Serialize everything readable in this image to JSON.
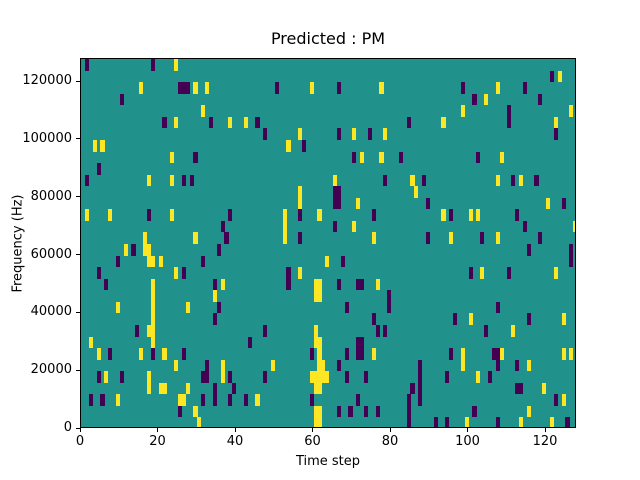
{
  "figure": {
    "title": "Predicted : PM",
    "xlabel": "Time step",
    "ylabel": "Frequency (Hz)"
  },
  "chart_data": {
    "type": "heatmap",
    "title": "Predicted : PM",
    "xlabel": "Time step",
    "ylabel": "Frequency (Hz)",
    "x_range": [
      0,
      128
    ],
    "y_range_hz": [
      0,
      128000
    ],
    "x_ticks": [
      0,
      20,
      40,
      60,
      80,
      100,
      120
    ],
    "y_ticks": [
      0,
      20000,
      40000,
      60000,
      80000,
      100000,
      120000
    ],
    "grid": false,
    "legend": "none",
    "n_cols": 128,
    "n_rows": 32,
    "row_height_hz": 4000,
    "colors": {
      "background_teal": "#21918c",
      "yellow": "#fde725",
      "purple": "#440154",
      "axes": "#000000"
    },
    "cells_format": "[time_step, freq_row(0=0-4kHz ... 31=124-128kHz), color y|p]",
    "cells": [
      [
        1,
        31,
        "p"
      ],
      [
        18,
        31,
        "p"
      ],
      [
        24,
        31,
        "y"
      ],
      [
        121,
        30,
        "p"
      ],
      [
        123,
        30,
        "y"
      ],
      [
        15,
        29,
        "y"
      ],
      [
        25,
        29,
        "p"
      ],
      [
        26,
        29,
        "p"
      ],
      [
        27,
        29,
        "p"
      ],
      [
        29,
        29,
        "y"
      ],
      [
        32,
        29,
        "y"
      ],
      [
        50,
        29,
        "p"
      ],
      [
        59,
        29,
        "y"
      ],
      [
        66,
        29,
        "p"
      ],
      [
        77,
        29,
        "y"
      ],
      [
        98,
        29,
        "p"
      ],
      [
        107,
        29,
        "y"
      ],
      [
        114,
        29,
        "p"
      ],
      [
        10,
        28,
        "p"
      ],
      [
        101,
        28,
        "p"
      ],
      [
        104,
        28,
        "y"
      ],
      [
        118,
        28,
        "p"
      ],
      [
        31,
        27,
        "y"
      ],
      [
        98,
        27,
        "y"
      ],
      [
        110,
        27,
        "p"
      ],
      [
        126,
        27,
        "y"
      ],
      [
        21,
        26,
        "p"
      ],
      [
        24,
        26,
        "y"
      ],
      [
        33,
        26,
        "p"
      ],
      [
        38,
        26,
        "y"
      ],
      [
        42,
        26,
        "y"
      ],
      [
        45,
        26,
        "p"
      ],
      [
        84,
        26,
        "p"
      ],
      [
        93,
        26,
        "y"
      ],
      [
        110,
        26,
        "p"
      ],
      [
        122,
        26,
        "y"
      ],
      [
        47,
        25,
        "p"
      ],
      [
        56,
        25,
        "y"
      ],
      [
        66,
        25,
        "p"
      ],
      [
        70,
        25,
        "y"
      ],
      [
        74,
        25,
        "p"
      ],
      [
        78,
        25,
        "y"
      ],
      [
        122,
        25,
        "p"
      ],
      [
        3,
        24,
        "y"
      ],
      [
        5,
        24,
        "y"
      ],
      [
        53,
        24,
        "y"
      ],
      [
        57,
        24,
        "p"
      ],
      [
        23,
        23,
        "y"
      ],
      [
        29,
        23,
        "p"
      ],
      [
        70,
        23,
        "p"
      ],
      [
        72,
        23,
        "y"
      ],
      [
        77,
        23,
        "y"
      ],
      [
        82,
        23,
        "p"
      ],
      [
        102,
        23,
        "p"
      ],
      [
        108,
        23,
        "y"
      ],
      [
        4,
        22,
        "p"
      ],
      [
        1,
        21,
        "p"
      ],
      [
        17,
        21,
        "y"
      ],
      [
        23,
        21,
        "y"
      ],
      [
        26,
        21,
        "p"
      ],
      [
        28,
        21,
        "p"
      ],
      [
        65,
        21,
        "y"
      ],
      [
        78,
        21,
        "p"
      ],
      [
        85,
        21,
        "y"
      ],
      [
        88,
        21,
        "p"
      ],
      [
        107,
        21,
        "y"
      ],
      [
        111,
        21,
        "p"
      ],
      [
        113,
        21,
        "y"
      ],
      [
        117,
        21,
        "p"
      ],
      [
        56,
        20,
        "y"
      ],
      [
        65,
        20,
        "p"
      ],
      [
        66,
        20,
        "p"
      ],
      [
        86,
        20,
        "y"
      ],
      [
        56,
        19,
        "y"
      ],
      [
        65,
        19,
        "p"
      ],
      [
        66,
        19,
        "p"
      ],
      [
        71,
        19,
        "y"
      ],
      [
        89,
        19,
        "p"
      ],
      [
        120,
        19,
        "y"
      ],
      [
        124,
        19,
        "p"
      ],
      [
        1,
        18,
        "y"
      ],
      [
        7,
        18,
        "y"
      ],
      [
        17,
        18,
        "p"
      ],
      [
        23,
        18,
        "y"
      ],
      [
        38,
        18,
        "p"
      ],
      [
        52,
        18,
        "y"
      ],
      [
        56,
        18,
        "p"
      ],
      [
        61,
        18,
        "y"
      ],
      [
        75,
        18,
        "p"
      ],
      [
        93,
        18,
        "y"
      ],
      [
        95,
        18,
        "p"
      ],
      [
        100,
        18,
        "y"
      ],
      [
        102,
        18,
        "y"
      ],
      [
        112,
        18,
        "p"
      ],
      [
        36,
        17,
        "p"
      ],
      [
        52,
        17,
        "y"
      ],
      [
        65,
        17,
        "p"
      ],
      [
        70,
        17,
        "y"
      ],
      [
        114,
        17,
        "p"
      ],
      [
        127,
        17,
        "y"
      ],
      [
        16,
        16,
        "y"
      ],
      [
        29,
        16,
        "y"
      ],
      [
        37,
        16,
        "p"
      ],
      [
        52,
        16,
        "y"
      ],
      [
        56,
        16,
        "p"
      ],
      [
        75,
        16,
        "y"
      ],
      [
        89,
        16,
        "p"
      ],
      [
        95,
        16,
        "y"
      ],
      [
        103,
        16,
        "p"
      ],
      [
        107,
        16,
        "y"
      ],
      [
        118,
        16,
        "p"
      ],
      [
        11,
        15,
        "y"
      ],
      [
        13,
        15,
        "p"
      ],
      [
        16,
        15,
        "y"
      ],
      [
        17,
        15,
        "y"
      ],
      [
        35,
        15,
        "p"
      ],
      [
        115,
        15,
        "p"
      ],
      [
        126,
        15,
        "p"
      ],
      [
        9,
        14,
        "p"
      ],
      [
        17,
        14,
        "y"
      ],
      [
        18,
        14,
        "y"
      ],
      [
        20,
        14,
        "y"
      ],
      [
        31,
        14,
        "p"
      ],
      [
        63,
        14,
        "y"
      ],
      [
        67,
        14,
        "p"
      ],
      [
        126,
        14,
        "p"
      ],
      [
        4,
        13,
        "p"
      ],
      [
        24,
        13,
        "y"
      ],
      [
        26,
        13,
        "p"
      ],
      [
        53,
        13,
        "p"
      ],
      [
        56,
        13,
        "y"
      ],
      [
        100,
        13,
        "p"
      ],
      [
        103,
        13,
        "y"
      ],
      [
        110,
        13,
        "p"
      ],
      [
        122,
        13,
        "y"
      ],
      [
        6,
        12,
        "p"
      ],
      [
        18,
        12,
        "y"
      ],
      [
        34,
        12,
        "p"
      ],
      [
        36,
        12,
        "y"
      ],
      [
        53,
        12,
        "p"
      ],
      [
        60,
        12,
        "y"
      ],
      [
        61,
        12,
        "y"
      ],
      [
        66,
        12,
        "p"
      ],
      [
        71,
        12,
        "p"
      ],
      [
        72,
        12,
        "p"
      ],
      [
        76,
        12,
        "y"
      ],
      [
        18,
        11,
        "y"
      ],
      [
        34,
        11,
        "y"
      ],
      [
        60,
        11,
        "y"
      ],
      [
        61,
        11,
        "y"
      ],
      [
        79,
        11,
        "p"
      ],
      [
        9,
        10,
        "y"
      ],
      [
        18,
        10,
        "y"
      ],
      [
        27,
        10,
        "y"
      ],
      [
        35,
        10,
        "p"
      ],
      [
        68,
        10,
        "p"
      ],
      [
        79,
        10,
        "p"
      ],
      [
        107,
        10,
        "p"
      ],
      [
        18,
        9,
        "y"
      ],
      [
        34,
        9,
        "p"
      ],
      [
        75,
        9,
        "p"
      ],
      [
        96,
        9,
        "p"
      ],
      [
        100,
        9,
        "y"
      ],
      [
        115,
        9,
        "p"
      ],
      [
        124,
        9,
        "y"
      ],
      [
        14,
        8,
        "p"
      ],
      [
        17,
        8,
        "y"
      ],
      [
        18,
        8,
        "y"
      ],
      [
        47,
        8,
        "p"
      ],
      [
        60,
        8,
        "y"
      ],
      [
        76,
        8,
        "p"
      ],
      [
        78,
        8,
        "p"
      ],
      [
        104,
        8,
        "p"
      ],
      [
        111,
        8,
        "y"
      ],
      [
        2,
        7,
        "y"
      ],
      [
        18,
        7,
        "y"
      ],
      [
        43,
        7,
        "p"
      ],
      [
        60,
        7,
        "y"
      ],
      [
        61,
        7,
        "y"
      ],
      [
        71,
        7,
        "p"
      ],
      [
        72,
        7,
        "p"
      ],
      [
        4,
        6,
        "y"
      ],
      [
        7,
        6,
        "p"
      ],
      [
        15,
        6,
        "y"
      ],
      [
        18,
        6,
        "p"
      ],
      [
        21,
        6,
        "y"
      ],
      [
        26,
        6,
        "p"
      ],
      [
        59,
        6,
        "p"
      ],
      [
        61,
        6,
        "y"
      ],
      [
        68,
        6,
        "p"
      ],
      [
        71,
        6,
        "p"
      ],
      [
        72,
        6,
        "p"
      ],
      [
        75,
        6,
        "y"
      ],
      [
        95,
        6,
        "p"
      ],
      [
        98,
        6,
        "y"
      ],
      [
        106,
        6,
        "p"
      ],
      [
        107,
        6,
        "p"
      ],
      [
        108,
        6,
        "y"
      ],
      [
        124,
        6,
        "y"
      ],
      [
        126,
        6,
        "y"
      ],
      [
        24,
        5,
        "y"
      ],
      [
        32,
        5,
        "p"
      ],
      [
        36,
        5,
        "y"
      ],
      [
        49,
        5,
        "y"
      ],
      [
        61,
        5,
        "y"
      ],
      [
        62,
        5,
        "y"
      ],
      [
        66,
        5,
        "p"
      ],
      [
        87,
        5,
        "p"
      ],
      [
        98,
        5,
        "y"
      ],
      [
        107,
        5,
        "p"
      ],
      [
        112,
        5,
        "p"
      ],
      [
        115,
        5,
        "y"
      ],
      [
        4,
        4,
        "p"
      ],
      [
        6,
        4,
        "y"
      ],
      [
        10,
        4,
        "p"
      ],
      [
        17,
        4,
        "y"
      ],
      [
        31,
        4,
        "p"
      ],
      [
        32,
        4,
        "p"
      ],
      [
        36,
        4,
        "y"
      ],
      [
        38,
        4,
        "p"
      ],
      [
        47,
        4,
        "p"
      ],
      [
        59,
        4,
        "y"
      ],
      [
        60,
        4,
        "y"
      ],
      [
        61,
        4,
        "y"
      ],
      [
        62,
        4,
        "y"
      ],
      [
        63,
        4,
        "y"
      ],
      [
        68,
        4,
        "p"
      ],
      [
        73,
        4,
        "p"
      ],
      [
        87,
        4,
        "p"
      ],
      [
        94,
        4,
        "p"
      ],
      [
        102,
        4,
        "y"
      ],
      [
        105,
        4,
        "p"
      ],
      [
        17,
        3,
        "y"
      ],
      [
        20,
        3,
        "y"
      ],
      [
        21,
        3,
        "y"
      ],
      [
        27,
        3,
        "y"
      ],
      [
        34,
        3,
        "p"
      ],
      [
        39,
        3,
        "p"
      ],
      [
        60,
        3,
        "y"
      ],
      [
        61,
        3,
        "y"
      ],
      [
        85,
        3,
        "p"
      ],
      [
        87,
        3,
        "p"
      ],
      [
        112,
        3,
        "p"
      ],
      [
        113,
        3,
        "p"
      ],
      [
        119,
        3,
        "y"
      ],
      [
        2,
        2,
        "p"
      ],
      [
        5,
        2,
        "p"
      ],
      [
        9,
        2,
        "y"
      ],
      [
        25,
        2,
        "y"
      ],
      [
        26,
        2,
        "y"
      ],
      [
        31,
        2,
        "p"
      ],
      [
        34,
        2,
        "p"
      ],
      [
        38,
        2,
        "p"
      ],
      [
        42,
        2,
        "p"
      ],
      [
        45,
        2,
        "y"
      ],
      [
        59,
        2,
        "p"
      ],
      [
        71,
        2,
        "p"
      ],
      [
        84,
        2,
        "p"
      ],
      [
        87,
        2,
        "p"
      ],
      [
        122,
        2,
        "p"
      ],
      [
        124,
        2,
        "y"
      ],
      [
        25,
        1,
        "p"
      ],
      [
        29,
        1,
        "y"
      ],
      [
        60,
        1,
        "y"
      ],
      [
        61,
        1,
        "y"
      ],
      [
        66,
        1,
        "p"
      ],
      [
        69,
        1,
        "p"
      ],
      [
        73,
        1,
        "p"
      ],
      [
        76,
        1,
        "p"
      ],
      [
        84,
        1,
        "p"
      ],
      [
        101,
        1,
        "p"
      ],
      [
        115,
        1,
        "y"
      ],
      [
        30,
        0,
        "y"
      ],
      [
        60,
        0,
        "y"
      ],
      [
        61,
        0,
        "y"
      ],
      [
        84,
        0,
        "p"
      ],
      [
        91,
        0,
        "p"
      ],
      [
        94,
        0,
        "p"
      ],
      [
        99,
        0,
        "y"
      ],
      [
        107,
        0,
        "p"
      ],
      [
        113,
        0,
        "y"
      ],
      [
        121,
        0,
        "y"
      ],
      [
        125,
        0,
        "p"
      ]
    ]
  }
}
